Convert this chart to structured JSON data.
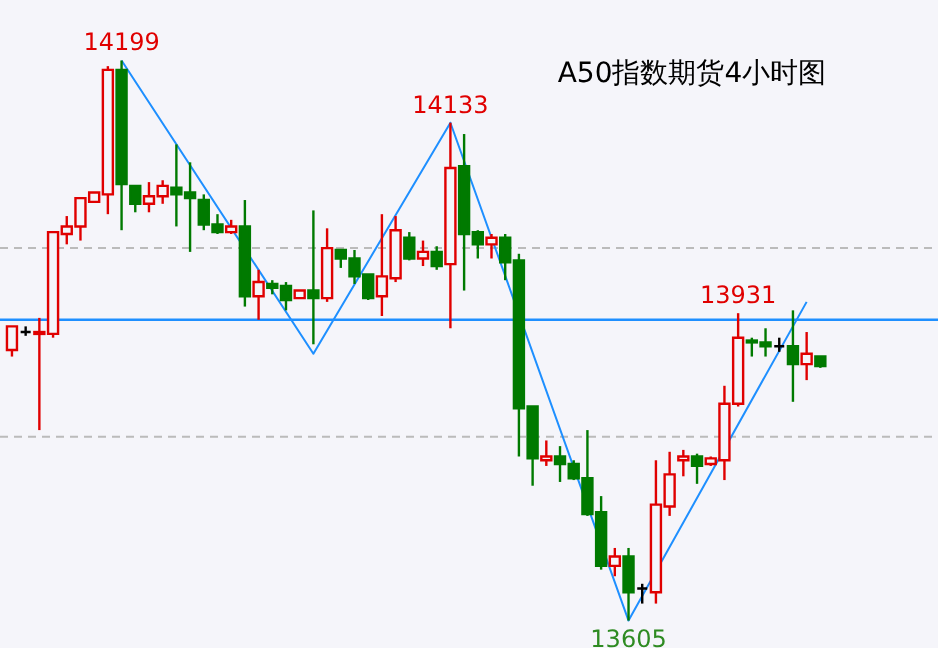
{
  "chart_data": {
    "type": "candlestick",
    "title": "A50指数期货4小时图",
    "categories": [
      null,
      null,
      null,
      null,
      null,
      null,
      null,
      null,
      null,
      null,
      null,
      null,
      null,
      null,
      null,
      null,
      null,
      null,
      null,
      null,
      null,
      null,
      null,
      null,
      null,
      null,
      null,
      null,
      null,
      null,
      null,
      null,
      null,
      null,
      null,
      null,
      null,
      null,
      null,
      null,
      null,
      null,
      null,
      null,
      null,
      null,
      null,
      null,
      null,
      null,
      null,
      null,
      null,
      null,
      null,
      null,
      null,
      null,
      null,
      null
    ],
    "ohlc": [
      [
        13892,
        13917,
        13885,
        13917
      ],
      [
        13911,
        13917,
        13907,
        13911
      ],
      [
        13909,
        13926,
        13807,
        13911
      ],
      [
        13909,
        14017,
        13905,
        14017
      ],
      [
        14015,
        14034,
        14004,
        14023
      ],
      [
        14023,
        14053,
        14008,
        14053
      ],
      [
        14049,
        14059,
        14049,
        14059
      ],
      [
        14057,
        14193,
        14036,
        14189
      ],
      [
        14189,
        14199,
        14019,
        14068
      ],
      [
        14066,
        14066,
        14038,
        14047
      ],
      [
        14047,
        14070,
        14038,
        14055
      ],
      [
        14055,
        14072,
        14047,
        14066
      ],
      [
        14064,
        14110,
        14023,
        14057
      ],
      [
        14059,
        14091,
        13996,
        14053
      ],
      [
        14051,
        14057,
        14019,
        14025
      ],
      [
        14025,
        14036,
        14015,
        14017
      ],
      [
        14017,
        14030,
        14015,
        14023
      ],
      [
        14023,
        14051,
        13938,
        13949
      ],
      [
        13949,
        13977,
        13924,
        13964
      ],
      [
        13962,
        13966,
        13951,
        13958
      ],
      [
        13960,
        13964,
        13934,
        13945
      ],
      [
        13947,
        13955,
        13947,
        13955
      ],
      [
        13955,
        14040,
        13898,
        13947
      ],
      [
        13947,
        14021,
        13943,
        14000
      ],
      [
        13998,
        13998,
        13979,
        13989
      ],
      [
        13989,
        13998,
        13962,
        13970
      ],
      [
        13972,
        13972,
        13945,
        13947
      ],
      [
        13949,
        14036,
        13928,
        13970
      ],
      [
        13968,
        14034,
        13964,
        14019
      ],
      [
        14011,
        14017,
        13987,
        13989
      ],
      [
        13989,
        14008,
        13981,
        13996
      ],
      [
        13996,
        14002,
        13977,
        13981
      ],
      [
        13983,
        14133,
        13915,
        14085
      ],
      [
        14087,
        14121,
        13955,
        14015
      ],
      [
        14017,
        14019,
        13989,
        14004
      ],
      [
        14004,
        14015,
        13989,
        14011
      ],
      [
        14011,
        14015,
        13966,
        13985
      ],
      [
        13987,
        13994,
        13779,
        13830
      ],
      [
        13832,
        13832,
        13748,
        13777
      ],
      [
        13775,
        13796,
        13769,
        13779
      ],
      [
        13779,
        13790,
        13752,
        13771
      ],
      [
        13771,
        13775,
        13754,
        13756
      ],
      [
        13756,
        13807,
        13716,
        13718
      ],
      [
        13720,
        13737,
        13659,
        13663
      ],
      [
        13663,
        13682,
        13652,
        13673
      ],
      [
        13673,
        13682,
        13605,
        13635
      ],
      [
        13639,
        13644,
        13623,
        13639
      ],
      [
        13635,
        13775,
        13623,
        13728
      ],
      [
        13726,
        13784,
        13716,
        13760
      ],
      [
        13775,
        13786,
        13758,
        13779
      ],
      [
        13779,
        13782,
        13750,
        13769
      ],
      [
        13771,
        13779,
        13769,
        13777
      ],
      [
        13775,
        13854,
        13754,
        13835
      ],
      [
        13835,
        13931,
        13832,
        13905
      ],
      [
        13902,
        13905,
        13885,
        13900
      ],
      [
        13900,
        13915,
        13885,
        13896
      ],
      [
        13896,
        13905,
        13890,
        13896
      ],
      [
        13896,
        13934,
        13837,
        13877
      ],
      [
        13877,
        13911,
        13860,
        13888
      ],
      [
        13885,
        13885,
        13873,
        13875
      ]
    ],
    "colors": [
      "#e00000",
      "#000000",
      "#e00000",
      "#e00000",
      "#e00000",
      "#e00000",
      "#e00000",
      "#e00000",
      "#007a00",
      "#007a00",
      "#e00000",
      "#e00000",
      "#007a00",
      "#007a00",
      "#007a00",
      "#007a00",
      "#e00000",
      "#007a00",
      "#e00000",
      "#007a00",
      "#007a00",
      "#e00000",
      "#007a00",
      "#e00000",
      "#007a00",
      "#007a00",
      "#007a00",
      "#e00000",
      "#e00000",
      "#007a00",
      "#e00000",
      "#007a00",
      "#e00000",
      "#007a00",
      "#007a00",
      "#e00000",
      "#007a00",
      "#007a00",
      "#007a00",
      "#e00000",
      "#007a00",
      "#007a00",
      "#007a00",
      "#007a00",
      "#e00000",
      "#007a00",
      "#000000",
      "#e00000",
      "#e00000",
      "#e00000",
      "#007a00",
      "#e00000",
      "#e00000",
      "#e00000",
      "#007a00",
      "#007a00",
      "#000000",
      "#007a00",
      "#e00000",
      "#007a00"
    ],
    "series": [
      {
        "type": "line",
        "color": "#1e8fff",
        "values": [
          null,
          null,
          null,
          null,
          null,
          null,
          null,
          null,
          14199,
          null,
          null,
          null,
          null,
          null,
          null,
          null,
          null,
          null,
          null,
          null,
          null,
          null,
          13888,
          null,
          null,
          null,
          null,
          null,
          null,
          null,
          null,
          null,
          14133,
          null,
          null,
          null,
          null,
          null,
          null,
          null,
          null,
          null,
          null,
          null,
          null,
          13605,
          null,
          null,
          null,
          null,
          null,
          null,
          null,
          null,
          null,
          null,
          null,
          null,
          13943,
          null
        ]
      }
    ],
    "ref_lines": [
      {
        "axis": "y",
        "value": 13924,
        "color": "#1e8fff"
      }
    ],
    "yticks": [
      {
        "value": 14000,
        "label": null
      },
      {
        "value": 13800,
        "label": null
      }
    ],
    "grid": "y",
    "annotations": [
      {
        "text": "14199",
        "y": 14199
      },
      {
        "text": "14133",
        "y": 14133
      },
      {
        "text": "13931",
        "y": 13931
      },
      {
        "text": "13605",
        "y": 13605
      }
    ]
  }
}
